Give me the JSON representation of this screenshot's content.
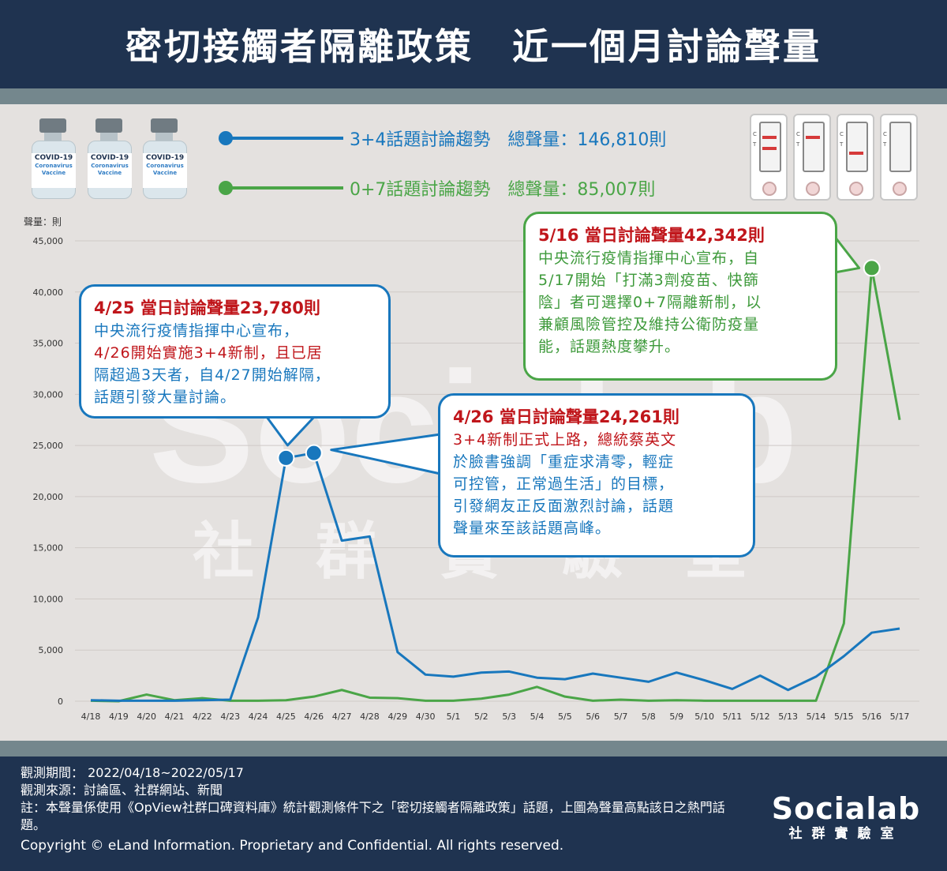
{
  "title": "密切接觸者隔離政策　近一個月討論聲量",
  "legend": [
    {
      "label": "3+4話題討論趨勢　總聲量：146,810則",
      "color": "#1877bd"
    },
    {
      "label": "0+7話題討論趨勢　總聲量：85,007則",
      "color": "#4aa547"
    }
  ],
  "vials": [
    {
      "title": "COVID-19",
      "line1": "Coronavirus",
      "line2": "Vaccine"
    },
    {
      "title": "COVID-19",
      "line1": "Coronavirus",
      "line2": "Vaccine"
    },
    {
      "title": "COVID-19",
      "line1": "Coronavirus",
      "line2": "Vaccine"
    }
  ],
  "test_kit_labels": {
    "c": "C",
    "t": "T"
  },
  "watermark": {
    "logo": "Socialab",
    "sub": "社　群　實　驗　室"
  },
  "chart_data": {
    "type": "line",
    "ylabel": "聲量：則",
    "ylim": [
      0,
      45000
    ],
    "yticks": [
      0,
      5000,
      10000,
      15000,
      20000,
      25000,
      30000,
      35000,
      40000,
      45000
    ],
    "ytick_labels": [
      "0",
      "5,000",
      "10,000",
      "15,000",
      "20,000",
      "25,000",
      "30,000",
      "35,000",
      "40,000",
      "45,000"
    ],
    "grid": true,
    "categories": [
      "4/18",
      "4/19",
      "4/20",
      "4/21",
      "4/22",
      "4/23",
      "4/24",
      "4/25",
      "4/26",
      "4/27",
      "4/28",
      "4/29",
      "4/30",
      "5/1",
      "5/2",
      "5/3",
      "5/4",
      "5/5",
      "5/6",
      "5/7",
      "5/8",
      "5/9",
      "5/10",
      "5/11",
      "5/12",
      "5/13",
      "5/14",
      "5/15",
      "5/16",
      "5/17"
    ],
    "series": [
      {
        "name": "3+4話題討論趨勢",
        "color": "#1877bd",
        "values": [
          100,
          50,
          50,
          50,
          100,
          150,
          8200,
          23780,
          24261,
          15700,
          16100,
          4800,
          2600,
          2400,
          2800,
          2900,
          2300,
          2150,
          2700,
          2300,
          1900,
          2800,
          2050,
          1200,
          2500,
          1100,
          2400,
          4400,
          6700,
          7100
        ]
      },
      {
        "name": "0+7話題討論趨勢",
        "color": "#4aa547",
        "values": [
          50,
          0,
          650,
          100,
          300,
          50,
          50,
          100,
          450,
          1100,
          350,
          300,
          50,
          50,
          250,
          650,
          1400,
          450,
          50,
          150,
          50,
          100,
          50,
          50,
          50,
          50,
          50,
          7600,
          42342,
          27500
        ]
      }
    ],
    "highlights": [
      {
        "series": 0,
        "category": "4/25"
      },
      {
        "series": 0,
        "category": "4/26"
      },
      {
        "series": 1,
        "category": "5/16"
      }
    ]
  },
  "callouts": {
    "c1": {
      "title": "4/25 當日討論聲量23,780則",
      "l1": "中央流行疫情指揮中心宣布，",
      "l2": "4/26開始實施3+4新制，且已居",
      "l3": "隔超過3天者，自4/27開始解隔，",
      "l4": "話題引發大量討論。"
    },
    "c2": {
      "title": "4/26 當日討論聲量24,261則",
      "l1": "3+4新制正式上路，總統蔡英文",
      "l2": "於臉書強調「重症求清零，輕症",
      "l3": "可控管，正常過生活」的目標，",
      "l4": "引發網友正反面激烈討論，話題",
      "l5": "聲量來至該話題高峰。"
    },
    "c3": {
      "title": "5/16 當日討論聲量42,342則",
      "l1": "中央流行疫情指揮中心宣布，自",
      "l2": "5/17開始「打滿3劑疫苗、快篩",
      "l3": "陰」者可選擇0+7隔離新制，以",
      "l4": "兼顧風險管控及維持公衛防疫量",
      "l5": "能，話題熱度攀升。"
    }
  },
  "footer": {
    "period": "觀測期間： 2022/04/18~2022/05/17",
    "source": "觀測來源：討論區、社群網站、新聞",
    "note": "註：本聲量係使用《OpView社群口碑資料庫》統計觀測條件下之「密切接觸者隔離政策」話題，上圖為聲量高點該日之熱門話題。",
    "copyright": "Copyright © eLand Information. Proprietary and Confidential. All rights reserved.",
    "brand": "Socialab",
    "brand_sub": "社群實驗室"
  }
}
